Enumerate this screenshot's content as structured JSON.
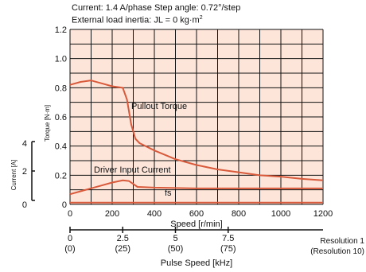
{
  "header": {
    "line1": "Current: 1.4 A/phase   Step angle: 0.72°/step",
    "line2_prefix": "External load inertia: JL = 0 kg·m",
    "line2_sup": "2"
  },
  "chart_data": {
    "type": "line",
    "xlabel": "Speed [r/min]",
    "x_ticks": [
      "0",
      "200",
      "400",
      "600",
      "800",
      "1000",
      "1200"
    ],
    "xlim": [
      0,
      1200
    ],
    "ylabel_left": "Torque [N·m]",
    "y_ticks": [
      "0",
      "0.2",
      "0.4",
      "0.6",
      "0.8",
      "1.0",
      "1.2"
    ],
    "ylim": [
      0,
      1.2
    ],
    "ylabel_current": "Current [A]",
    "current_ticks": [
      "0",
      "2",
      "4"
    ],
    "pulse_axis": {
      "label": "Pulse Speed   [kHz]",
      "ticks": [
        "0",
        "2.5",
        "5",
        "7.5"
      ],
      "ticks_res10": [
        "(0)",
        "(25)",
        "(50)",
        "(75)"
      ],
      "res1_label": "Resolution 1",
      "res10_label": "(Resolution 10)"
    },
    "series": [
      {
        "name": "Pullout Torque",
        "x": [
          0,
          50,
          100,
          150,
          200,
          250,
          270,
          290,
          310,
          330,
          400,
          500,
          600,
          700,
          800,
          900,
          1000,
          1100,
          1200
        ],
        "y": [
          0.82,
          0.84,
          0.85,
          0.83,
          0.81,
          0.8,
          0.72,
          0.55,
          0.45,
          0.42,
          0.37,
          0.31,
          0.27,
          0.24,
          0.22,
          0.2,
          0.19,
          0.175,
          0.165
        ]
      },
      {
        "name": "Driver Input Current",
        "x": [
          0,
          50,
          100,
          150,
          200,
          250,
          280,
          300,
          320,
          400,
          600,
          800,
          1000,
          1200
        ],
        "y": [
          0.07,
          0.09,
          0.11,
          0.13,
          0.15,
          0.165,
          0.16,
          0.14,
          0.12,
          0.115,
          0.11,
          0.11,
          0.11,
          0.11
        ]
      },
      {
        "name": "fs",
        "x": [
          0,
          200,
          400,
          600,
          800,
          1000,
          1200
        ],
        "y": [
          0.012,
          0.012,
          0.012,
          0.012,
          0.012,
          0.012,
          0.012
        ]
      }
    ],
    "grid": true,
    "line_color": "#d95a3b",
    "plot_background": "#fde5da"
  }
}
